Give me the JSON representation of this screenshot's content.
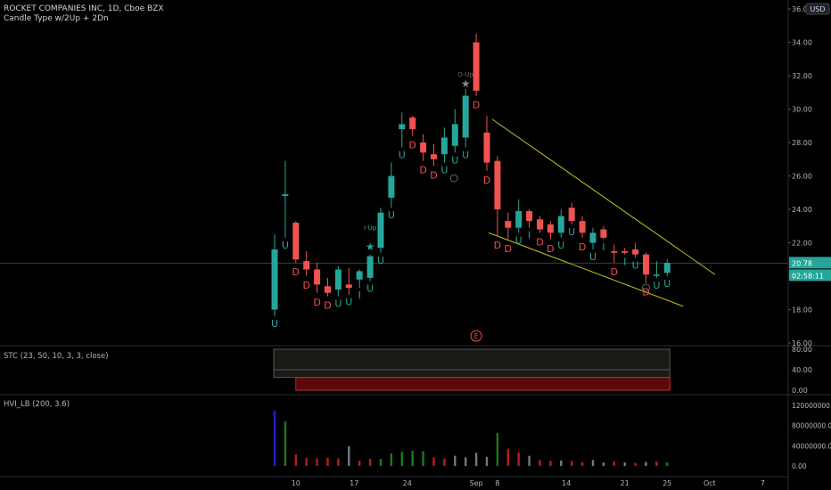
{
  "header": {
    "symbol": "ROCKET COMPANIES INC, 1D, Cboe BZX",
    "indicator": "Candle Type w/2Up + 2Dn"
  },
  "currency": "USD",
  "price_badge": {
    "price": "20.78",
    "countdown": "02:58:11"
  },
  "panes": {
    "stc_label": "STC (23, 50, 10, 3, 3, close)",
    "hvi_label": "HVI_LB (200, 3.6)"
  },
  "colors": {
    "up": "#26a69a",
    "down": "#ef5350",
    "trend": "#c7c21a",
    "vol_green": "#1b7a1b",
    "vol_red": "#b71c1c",
    "vol_grey": "#787878",
    "vol_blue": "#1f1fcf"
  },
  "chart_data": [
    {
      "type": "candlestick",
      "y_ticks": [
        "36.00",
        "34.00",
        "32.00",
        "30.00",
        "28.00",
        "26.00",
        "24.00",
        "22.00",
        "20.00",
        "18.00",
        "16.00"
      ],
      "x_ticks": [
        "10",
        "17",
        "24",
        "Sep",
        "8",
        "14",
        "21",
        "25",
        "Oct",
        "7"
      ],
      "ylim": [
        16,
        36
      ],
      "candles": [
        {
          "o": 18.0,
          "h": 22.5,
          "l": 17.6,
          "c": 21.6,
          "tag": "U"
        },
        {
          "o": 24.8,
          "h": 26.9,
          "l": 22.3,
          "c": 24.9,
          "tag": "U"
        },
        {
          "o": 23.2,
          "h": 23.3,
          "l": 20.8,
          "c": 21.0,
          "tag": "D"
        },
        {
          "o": 20.9,
          "h": 21.5,
          "l": 20.0,
          "c": 20.4,
          "tag": "D"
        },
        {
          "o": 20.4,
          "h": 20.8,
          "l": 19.0,
          "c": 19.5,
          "tag": "D"
        },
        {
          "o": 19.4,
          "h": 19.9,
          "l": 18.8,
          "c": 19.0,
          "tag": "D"
        },
        {
          "o": 19.2,
          "h": 20.6,
          "l": 18.8,
          "c": 20.4,
          "tag": "U"
        },
        {
          "o": 19.5,
          "h": 20.5,
          "l": 18.9,
          "c": 19.3,
          "tag": "U"
        },
        {
          "o": 19.8,
          "h": 20.4,
          "l": 19.3,
          "c": 20.3,
          "tag": "I"
        },
        {
          "o": 19.9,
          "h": 21.3,
          "l": 19.7,
          "c": 21.2,
          "tag": "U"
        },
        {
          "o": 21.7,
          "h": 24.1,
          "l": 21.4,
          "c": 23.8,
          "tag": "U"
        },
        {
          "o": 24.7,
          "h": 26.8,
          "l": 24.1,
          "c": 26.0,
          "tag": "U"
        },
        {
          "o": 28.8,
          "h": 29.8,
          "l": 27.7,
          "c": 29.1,
          "tag": "U"
        },
        {
          "o": 29.5,
          "h": 29.6,
          "l": 28.4,
          "c": 28.8,
          "tag": "D"
        },
        {
          "o": 28.0,
          "h": 28.5,
          "l": 26.9,
          "c": 27.4,
          "tag": "D"
        },
        {
          "o": 27.3,
          "h": 27.9,
          "l": 26.6,
          "c": 27.0,
          "tag": "D"
        },
        {
          "o": 27.3,
          "h": 28.9,
          "l": 26.8,
          "c": 28.3,
          "tag": "U"
        },
        {
          "o": 27.8,
          "h": 30.0,
          "l": 27.4,
          "c": 29.1,
          "tag": "U"
        },
        {
          "o": 28.3,
          "h": 31.2,
          "l": 27.7,
          "c": 30.8,
          "tag": "U",
          "special": "O-Up"
        },
        {
          "o": 34.0,
          "h": 34.5,
          "l": 30.8,
          "c": 31.1,
          "tag": "D"
        },
        {
          "o": 28.6,
          "h": 29.6,
          "l": 26.3,
          "c": 26.8,
          "tag": "D"
        },
        {
          "o": 26.9,
          "h": 27.2,
          "l": 22.4,
          "c": 24.0,
          "tag": "D"
        },
        {
          "o": 23.3,
          "h": 23.8,
          "l": 22.2,
          "c": 22.9,
          "tag": "D"
        },
        {
          "o": 22.9,
          "h": 24.6,
          "l": 22.6,
          "c": 23.9,
          "tag": "U"
        },
        {
          "o": 23.9,
          "h": 24.0,
          "l": 22.9,
          "c": 23.3,
          "tag": "I"
        },
        {
          "o": 23.4,
          "h": 23.6,
          "l": 22.6,
          "c": 22.8,
          "tag": "D"
        },
        {
          "o": 23.1,
          "h": 23.3,
          "l": 22.2,
          "c": 22.6,
          "tag": "D"
        },
        {
          "o": 22.6,
          "h": 24.0,
          "l": 22.3,
          "c": 23.6,
          "tag": "U"
        },
        {
          "o": 24.1,
          "h": 24.4,
          "l": 23.1,
          "c": 23.3,
          "tag": "U"
        },
        {
          "o": 23.3,
          "h": 23.6,
          "l": 22.3,
          "c": 22.6,
          "tag": "D"
        },
        {
          "o": 22.0,
          "h": 22.9,
          "l": 21.6,
          "c": 22.6,
          "tag": "U"
        },
        {
          "o": 22.8,
          "h": 23.0,
          "l": 22.2,
          "c": 22.3,
          "tag": "I"
        },
        {
          "o": 21.5,
          "h": 21.9,
          "l": 20.8,
          "c": 21.4,
          "tag": "D"
        },
        {
          "o": 21.5,
          "h": 21.7,
          "l": 21.3,
          "c": 21.4,
          "tag": "I"
        },
        {
          "o": 21.6,
          "h": 22.0,
          "l": 21.1,
          "c": 21.3,
          "tag": "U"
        },
        {
          "o": 21.3,
          "h": 21.4,
          "l": 19.6,
          "c": 20.1,
          "tag": "D"
        },
        {
          "o": 20.1,
          "h": 20.9,
          "l": 19.9,
          "c": 20.1,
          "tag": "U"
        },
        {
          "o": 20.2,
          "h": 21.0,
          "l": 20.0,
          "c": 20.8,
          "tag": "U"
        }
      ],
      "annotations": [
        {
          "label": "I-Up",
          "at": 9
        },
        {
          "label": "E",
          "at": 19
        }
      ]
    },
    {
      "type": "area",
      "name": "STC",
      "y_ticks": [
        "80.00",
        "40.00",
        "0.00"
      ],
      "ylim": [
        0,
        80
      ]
    },
    {
      "type": "bar",
      "name": "HVI_LB",
      "y_ticks": [
        "120000000.00",
        "80000000.00",
        "40000000.00",
        "0.00"
      ],
      "ylim": [
        0,
        120000000
      ],
      "values": [
        110000000,
        88000000,
        23000000,
        16000000,
        15000000,
        16000000,
        15000000,
        39000000,
        10000000,
        14000000,
        14000000,
        25000000,
        28000000,
        30000000,
        29000000,
        17000000,
        15000000,
        20000000,
        17000000,
        26000000,
        18000000,
        65000000,
        34000000,
        27000000,
        20000000,
        12000000,
        10000000,
        11000000,
        10000000,
        8000000,
        12000000,
        7000000,
        9000000,
        7000000,
        6000000,
        8000000,
        9000000,
        7000000
      ],
      "bar_colors": [
        "blue",
        "green",
        "red",
        "red",
        "red",
        "red",
        "red",
        "grey",
        "red",
        "red",
        "green",
        "green",
        "green",
        "green",
        "green",
        "red",
        "red",
        "grey",
        "grey",
        "grey",
        "grey",
        "green",
        "red",
        "red",
        "grey",
        "red",
        "red",
        "grey",
        "red",
        "red",
        "grey",
        "grey",
        "red",
        "grey",
        "red",
        "grey",
        "red",
        "green"
      ]
    }
  ]
}
